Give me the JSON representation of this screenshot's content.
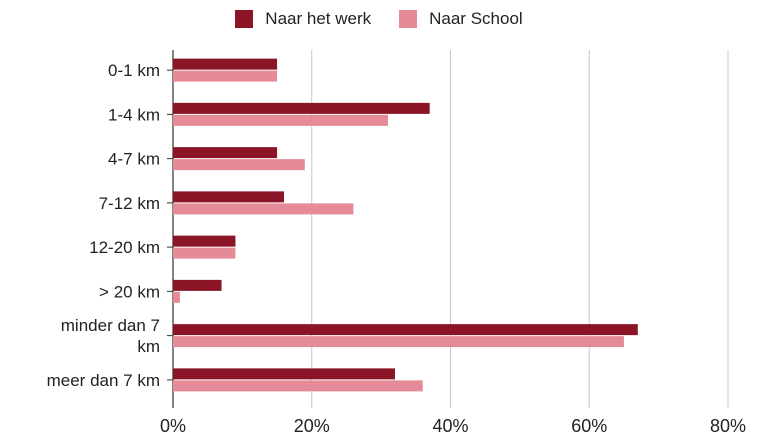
{
  "chart_data": {
    "type": "bar",
    "orientation": "horizontal",
    "categories": [
      [
        "0-1 km"
      ],
      [
        "1-4 km"
      ],
      [
        "4-7 km"
      ],
      [
        "7-12 km"
      ],
      [
        "12-20 km"
      ],
      [
        "> 20 km"
      ],
      [
        "minder dan 7",
        "km"
      ],
      [
        "meer dan 7 km"
      ]
    ],
    "series": [
      {
        "name": "Naar het werk",
        "color": "#8b1526",
        "values": [
          15,
          37,
          15,
          16,
          9,
          7,
          67,
          32
        ]
      },
      {
        "name": "Naar School",
        "color": "#e48b97",
        "values": [
          15,
          31,
          19,
          26,
          9,
          1,
          65,
          36
        ]
      }
    ],
    "xlim": [
      0,
      80
    ],
    "xticks": [
      "0%",
      "20%",
      "40%",
      "60%",
      "80%"
    ],
    "tick_values": [
      0,
      20,
      40,
      60,
      80
    ],
    "grid": true,
    "legend": "top-center",
    "title": "",
    "xlabel": "",
    "ylabel": ""
  }
}
